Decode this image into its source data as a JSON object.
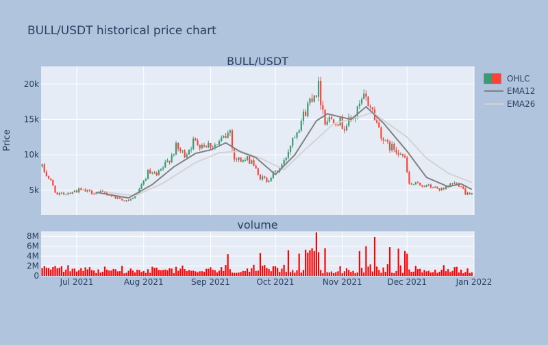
{
  "title": "BULL/USDT historical price chart",
  "chart_data": [
    {
      "type": "candlestick",
      "title": "BULL/USDT",
      "xlabel": "",
      "ylabel": "Price",
      "ylim": [
        1500,
        22500
      ],
      "yticks": [
        5000,
        10000,
        15000,
        20000
      ],
      "ytick_labels": [
        "5k",
        "10k",
        "15k",
        "20k"
      ],
      "grid": true,
      "legend_position": "top-right",
      "legend": [
        "OHLC",
        "EMA12",
        "EMA26"
      ],
      "colors": {
        "increasing": "#3d9970",
        "decreasing": "#ff4136",
        "ema12": "#808080",
        "ema26": "#d3d3d3"
      },
      "x_start": "2021-06-15",
      "x_end": "2021-12-31",
      "xticks": [
        "2021-07-01",
        "2021-08-01",
        "2021-09-01",
        "2021-10-01",
        "2021-11-01",
        "2021-12-01",
        "2022-01-01"
      ],
      "xtick_labels": [
        "Jul 2021",
        "Aug 2021",
        "Sep 2021",
        "Oct 2021",
        "Nov 2021",
        "Dec 2021",
        "Jan 2022"
      ],
      "close_anchors": [
        [
          "2021-06-15",
          8200
        ],
        [
          "2021-06-19",
          6200
        ],
        [
          "2021-06-22",
          4300
        ],
        [
          "2021-06-26",
          4600
        ],
        [
          "2021-07-02",
          5000
        ],
        [
          "2021-07-08",
          4700
        ],
        [
          "2021-07-14",
          4600
        ],
        [
          "2021-07-20",
          3900
        ],
        [
          "2021-07-25",
          3400
        ],
        [
          "2021-07-30",
          4900
        ],
        [
          "2021-08-03",
          7500
        ],
        [
          "2021-08-07",
          7000
        ],
        [
          "2021-08-12",
          9000
        ],
        [
          "2021-08-16",
          11000
        ],
        [
          "2021-08-20",
          10000
        ],
        [
          "2021-08-24",
          11800
        ],
        [
          "2021-08-29",
          11500
        ],
        [
          "2021-09-04",
          11400
        ],
        [
          "2021-09-08",
          12600
        ],
        [
          "2021-09-10",
          13500
        ],
        [
          "2021-09-12",
          9400
        ],
        [
          "2021-09-17",
          9200
        ],
        [
          "2021-09-20",
          9300
        ],
        [
          "2021-09-23",
          7000
        ],
        [
          "2021-09-27",
          6400
        ],
        [
          "2021-10-01",
          7500
        ],
        [
          "2021-10-05",
          8900
        ],
        [
          "2021-10-09",
          12500
        ],
        [
          "2021-10-14",
          15500
        ],
        [
          "2021-10-18",
          18500
        ],
        [
          "2021-10-21",
          19500
        ],
        [
          "2021-10-24",
          15000
        ],
        [
          "2021-10-29",
          15200
        ],
        [
          "2021-11-02",
          14000
        ],
        [
          "2021-11-07",
          15600
        ],
        [
          "2021-11-11",
          18000
        ],
        [
          "2021-11-14",
          17000
        ],
        [
          "2021-11-17",
          14500
        ],
        [
          "2021-11-21",
          11500
        ],
        [
          "2021-11-24",
          11000
        ],
        [
          "2021-11-28",
          10500
        ],
        [
          "2021-11-30",
          9200
        ],
        [
          "2021-12-02",
          5800
        ],
        [
          "2021-12-07",
          5800
        ],
        [
          "2021-12-13",
          5400
        ],
        [
          "2021-12-18",
          5000
        ],
        [
          "2021-12-22",
          6000
        ],
        [
          "2021-12-26",
          5800
        ],
        [
          "2021-12-28",
          4600
        ],
        [
          "2021-12-31",
          4700
        ]
      ],
      "ema12_anchors": [
        [
          "2021-07-10",
          4700
        ],
        [
          "2021-07-25",
          3900
        ],
        [
          "2021-08-05",
          5800
        ],
        [
          "2021-08-15",
          8300
        ],
        [
          "2021-08-25",
          10200
        ],
        [
          "2021-09-01",
          10700
        ],
        [
          "2021-09-08",
          11700
        ],
        [
          "2021-09-15",
          10400
        ],
        [
          "2021-09-22",
          9600
        ],
        [
          "2021-10-01",
          7200
        ],
        [
          "2021-10-10",
          10000
        ],
        [
          "2021-10-20",
          14800
        ],
        [
          "2021-10-25",
          15800
        ],
        [
          "2021-11-05",
          15000
        ],
        [
          "2021-11-12",
          16800
        ],
        [
          "2021-11-20",
          14500
        ],
        [
          "2021-12-01",
          10500
        ],
        [
          "2021-12-10",
          6800
        ],
        [
          "2021-12-20",
          5500
        ],
        [
          "2021-12-26",
          5900
        ],
        [
          "2021-12-31",
          5100
        ]
      ],
      "ema26_anchors": [
        [
          "2021-07-15",
          4700
        ],
        [
          "2021-07-28",
          4200
        ],
        [
          "2021-08-10",
          6000
        ],
        [
          "2021-08-25",
          8900
        ],
        [
          "2021-09-05",
          10300
        ],
        [
          "2021-09-15",
          10500
        ],
        [
          "2021-09-25",
          9400
        ],
        [
          "2021-10-05",
          7900
        ],
        [
          "2021-10-15",
          10800
        ],
        [
          "2021-10-28",
          14400
        ],
        [
          "2021-11-08",
          15300
        ],
        [
          "2021-11-15",
          16000
        ],
        [
          "2021-11-25",
          13800
        ],
        [
          "2021-12-01",
          12500
        ],
        [
          "2021-12-10",
          9500
        ],
        [
          "2021-12-20",
          7400
        ],
        [
          "2021-12-31",
          6100
        ]
      ]
    },
    {
      "type": "bar",
      "title": "volume",
      "xlabel": "",
      "ylabel": "",
      "ylim": [
        0,
        9000000
      ],
      "yticks": [
        0,
        2000000,
        4000000,
        6000000,
        8000000
      ],
      "ytick_labels": [
        "0",
        "2M",
        "4M",
        "6M",
        "8M"
      ],
      "color": "#ff0000",
      "typical_range": [
        500000,
        2500000
      ],
      "spikes": [
        [
          "2021-09-09",
          4400000
        ],
        [
          "2021-09-24",
          4600000
        ],
        [
          "2021-10-07",
          5200000
        ],
        [
          "2021-10-12",
          4500000
        ],
        [
          "2021-10-15",
          5300000
        ],
        [
          "2021-10-16",
          4700000
        ],
        [
          "2021-10-17",
          5200000
        ],
        [
          "2021-10-18",
          5600000
        ],
        [
          "2021-10-19",
          5000000
        ],
        [
          "2021-10-20",
          8800000
        ],
        [
          "2021-10-21",
          4800000
        ],
        [
          "2021-10-24",
          5600000
        ],
        [
          "2021-11-09",
          5000000
        ],
        [
          "2021-11-12",
          6000000
        ],
        [
          "2021-11-16",
          7900000
        ],
        [
          "2021-11-23",
          5800000
        ],
        [
          "2021-11-27",
          5500000
        ],
        [
          "2021-11-30",
          5000000
        ],
        [
          "2021-12-01",
          4500000
        ]
      ]
    }
  ]
}
